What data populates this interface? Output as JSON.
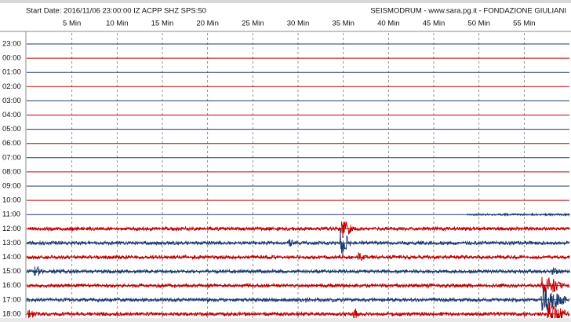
{
  "header": {
    "left": "Start Date: 2016/11/06 23:00:00 IZ ACPP SHZ SPS:50",
    "right": "SEISMODRUM - www.sara.pg.it - FONDAZIONE GIULIANI"
  },
  "minute_labels": [
    "5 Min",
    "10 Min",
    "15 Min",
    "20 Min",
    "25 Min",
    "30 Min",
    "35 Min",
    "40 Min",
    "45 Min",
    "50 Min",
    "55 Min"
  ],
  "hour_labels": [
    "23:00",
    "00:00",
    "01:00",
    "02:00",
    "03:00",
    "04:00",
    "05:00",
    "06:00",
    "07:00",
    "08:00",
    "09:00",
    "10:00",
    "11:00",
    "12:00",
    "13:00",
    "14:00",
    "15:00",
    "16:00",
    "17:00",
    "18:00"
  ]
}
